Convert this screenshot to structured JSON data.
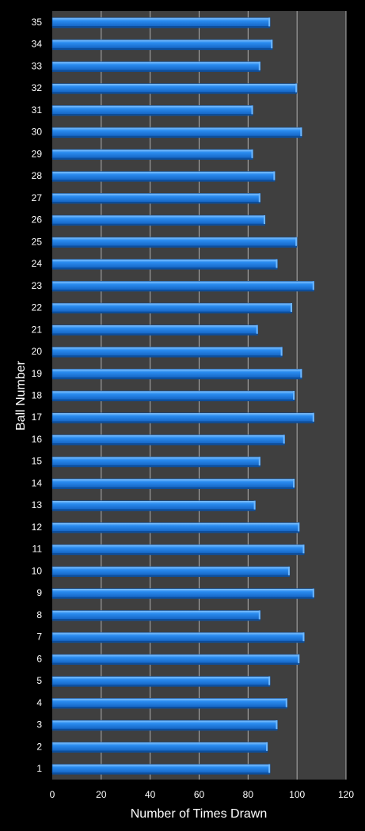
{
  "chart_data": {
    "type": "bar",
    "orientation": "horizontal",
    "title": "",
    "xlabel": "Number of Times Drawn",
    "ylabel": "Ball Number",
    "xlim": [
      0,
      120
    ],
    "xticks": [
      0,
      20,
      40,
      60,
      80,
      100,
      120
    ],
    "grid": true,
    "categories": [
      "1",
      "2",
      "3",
      "4",
      "5",
      "6",
      "7",
      "8",
      "9",
      "10",
      "11",
      "12",
      "13",
      "14",
      "15",
      "16",
      "17",
      "18",
      "19",
      "20",
      "21",
      "22",
      "23",
      "24",
      "25",
      "26",
      "27",
      "28",
      "29",
      "30",
      "31",
      "32",
      "33",
      "34",
      "35"
    ],
    "values": [
      89,
      88,
      92,
      96,
      89,
      101,
      103,
      85,
      107,
      97,
      103,
      101,
      83,
      99,
      85,
      95,
      107,
      99,
      102,
      94,
      84,
      98,
      107,
      92,
      100,
      87,
      85,
      91,
      82,
      102,
      82,
      100,
      85,
      90,
      89
    ],
    "colors": {
      "background": "#000000",
      "plot_area": "#3f3f3f",
      "bar": "#1f7fe0",
      "bar_highlight": "#6fb8ff",
      "bar_shadow": "#0e4f9c",
      "grid": "#b0b0b0",
      "text": "#ffffff"
    }
  }
}
